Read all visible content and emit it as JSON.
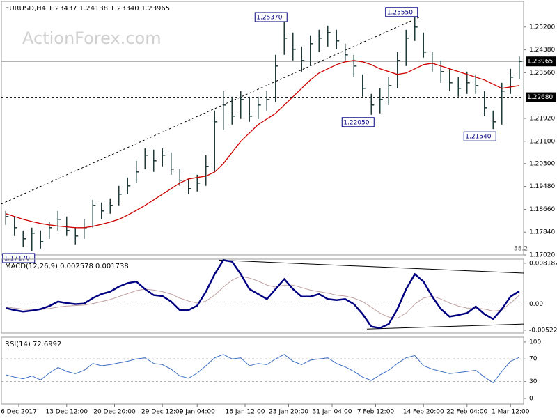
{
  "chart_data": [
    {
      "type": "ohlc",
      "title": "EURUSD,H4  1.23437 1.24138 1.23340 1.23965",
      "watermark": "ActionForex.com",
      "xlim": [
        -0.5,
        59.5
      ],
      "ylim": [
        1.1702,
        1.2612
      ],
      "yticks": [
        {
          "value": 1.252,
          "label": "1.25200"
        },
        {
          "value": 1.2438,
          "label": "1.24380"
        },
        {
          "value": 1.2356,
          "label": "1.23560"
        },
        {
          "value": 1.2192,
          "label": "1.21920"
        },
        {
          "value": 1.211,
          "label": "1.21100"
        },
        {
          "value": 1.203,
          "label": "1.20300"
        },
        {
          "value": 1.1948,
          "label": "1.19480"
        },
        {
          "value": 1.1866,
          "label": "1.18660"
        },
        {
          "value": 1.1784,
          "label": "1.17840"
        },
        {
          "value": 1.1702,
          "label": "1.17020"
        }
      ],
      "color": "#1f3a3a",
      "high": [
        1.186,
        1.184,
        1.179,
        1.18,
        1.179,
        1.182,
        1.186,
        1.184,
        1.18,
        1.183,
        1.19,
        1.189,
        1.1905,
        1.195,
        1.198,
        1.204,
        1.2085,
        1.208,
        1.2085,
        1.207,
        1.201,
        1.1975,
        1.199,
        1.206,
        1.222,
        1.229,
        1.227,
        1.229,
        1.227,
        1.227,
        1.229,
        1.242,
        1.2537,
        1.25,
        1.245,
        1.249,
        1.251,
        1.2525,
        1.251,
        1.246,
        1.242,
        1.235,
        1.228,
        1.23,
        1.234,
        1.243,
        1.251,
        1.2555,
        1.25,
        1.243,
        1.24,
        1.237,
        1.234,
        1.236,
        1.235,
        1.229,
        1.222,
        1.232,
        1.237,
        1.2414
      ],
      "low": [
        1.181,
        1.177,
        1.173,
        1.1717,
        1.1725,
        1.176,
        1.179,
        1.177,
        1.174,
        1.176,
        1.18,
        1.183,
        1.185,
        1.188,
        1.192,
        1.196,
        1.201,
        1.2,
        1.202,
        1.199,
        1.195,
        1.192,
        1.193,
        1.195,
        1.2,
        1.215,
        1.217,
        1.219,
        1.218,
        1.219,
        1.222,
        1.225,
        1.242,
        1.24,
        1.236,
        1.238,
        1.243,
        1.245,
        1.244,
        1.24,
        1.234,
        1.227,
        1.2205,
        1.221,
        1.224,
        1.23,
        1.238,
        1.247,
        1.241,
        1.236,
        1.232,
        1.229,
        1.227,
        1.228,
        1.228,
        1.22,
        1.2154,
        1.217,
        1.228,
        1.2334
      ],
      "close": [
        1.184,
        1.18,
        1.176,
        1.178,
        1.175,
        1.18,
        1.183,
        1.179,
        1.177,
        1.18,
        1.188,
        1.186,
        1.188,
        1.192,
        1.195,
        1.2,
        1.206,
        1.204,
        1.206,
        1.201,
        1.197,
        1.194,
        1.196,
        1.202,
        1.218,
        1.224,
        1.22,
        1.226,
        1.22,
        1.224,
        1.226,
        1.238,
        1.248,
        1.244,
        1.24,
        1.246,
        1.248,
        1.25,
        1.247,
        1.242,
        1.238,
        1.23,
        1.224,
        1.226,
        1.231,
        1.24,
        1.248,
        1.252,
        1.243,
        1.239,
        1.236,
        1.232,
        1.23,
        1.232,
        1.231,
        1.223,
        1.218,
        1.229,
        1.234,
        1.23965
      ],
      "series": [
        {
          "name": "MA",
          "color": "#cc0000",
          "values": [
            1.185,
            1.184,
            1.183,
            1.1822,
            1.1815,
            1.181,
            1.1806,
            1.1803,
            1.18,
            1.18,
            1.1805,
            1.1812,
            1.182,
            1.183,
            1.1845,
            1.1862,
            1.188,
            1.19,
            1.192,
            1.194,
            1.196,
            1.1975,
            1.198,
            1.1985,
            1.2,
            1.203,
            1.207,
            1.211,
            1.214,
            1.217,
            1.219,
            1.221,
            1.224,
            1.227,
            1.23,
            1.233,
            1.2355,
            1.237,
            1.2385,
            1.2395,
            1.24,
            1.2395,
            1.2385,
            1.237,
            1.236,
            1.235,
            1.2355,
            1.237,
            1.2385,
            1.239,
            1.238,
            1.237,
            1.236,
            1.235,
            1.234,
            1.233,
            1.2315,
            1.23,
            1.2305,
            1.231
          ]
        }
      ],
      "trendline": {
        "x": [
          -0.5,
          47.5
        ],
        "y": [
          1.1885,
          1.2555
        ]
      },
      "hlines": [
        {
          "value": 1.23965,
          "label": "1.23965",
          "style": "solid"
        },
        {
          "value": 1.2268,
          "label": "1.22680",
          "style": "dashed"
        }
      ],
      "annotations": [
        {
          "x": 32,
          "value": 1.2537,
          "label": "1.25370",
          "side": "top"
        },
        {
          "x": 47,
          "value": 1.2555,
          "label": "1.25550",
          "side": "top"
        },
        {
          "x": 42,
          "value": 1.2205,
          "label": "1.22050",
          "side": "bottom"
        },
        {
          "x": 56,
          "value": 1.2154,
          "label": "1.21540",
          "side": "bottom"
        },
        {
          "x": 3,
          "value": 1.1717,
          "label": "1.17170",
          "side": "bottom"
        }
      ],
      "fib_label": "38.2"
    },
    {
      "type": "line",
      "title": "MACD(12,26,9) 0.002578 0.001738",
      "ylim": [
        -0.0058,
        0.009
      ],
      "yticks": [
        0.008182,
        {
          "value": 0,
          "label": "0.00"
        },
        -0.005223
      ],
      "series": [
        {
          "name": "MACD",
          "color": "#000080",
          "values": [
            -0.0008,
            -0.0012,
            -0.0015,
            -0.0013,
            -0.001,
            -0.0004,
            0.0005,
            0.0002,
            0.0,
            0.0001,
            0.0012,
            0.002,
            0.0025,
            0.0035,
            0.0042,
            0.0045,
            0.003,
            0.0018,
            0.0016,
            0.0005,
            -0.0012,
            -0.0012,
            -0.0003,
            0.0025,
            0.006,
            0.0088,
            0.0085,
            0.006,
            0.003,
            0.002,
            0.001,
            0.003,
            0.005,
            0.003,
            0.0015,
            0.0015,
            0.002,
            0.001,
            0.0008,
            0.001,
            0.0,
            -0.002,
            -0.0045,
            -0.0048,
            -0.004,
            -0.001,
            0.003,
            0.006,
            0.0045,
            0.0015,
            -0.001,
            -0.0025,
            -0.0022,
            -0.0018,
            -0.0005,
            -0.002,
            -0.003,
            -0.001,
            0.0015,
            0.002578
          ]
        },
        {
          "name": "Signal",
          "color": "#c0a0a0",
          "values": [
            -0.0006,
            -0.0008,
            -0.001,
            -0.0011,
            -0.0011,
            -0.0009,
            -0.0006,
            -0.0004,
            -0.0003,
            -0.0002,
            0.0001,
            0.0005,
            0.0009,
            0.0015,
            0.0021,
            0.0027,
            0.003,
            0.0028,
            0.0025,
            0.002,
            0.0012,
            0.0006,
            0.0002,
            0.0006,
            0.0018,
            0.0034,
            0.0048,
            0.0056,
            0.0052,
            0.0046,
            0.0038,
            0.0034,
            0.0038,
            0.0038,
            0.0033,
            0.0028,
            0.0025,
            0.0022,
            0.0018,
            0.0016,
            0.0012,
            0.0005,
            -0.0006,
            -0.0018,
            -0.0026,
            -0.0028,
            -0.0018,
            0.0,
            0.0012,
            0.0016,
            0.001,
            0.0002,
            -0.0004,
            -0.0008,
            -0.0008,
            -0.001,
            -0.0014,
            -0.0012,
            0.0002,
            0.001738
          ]
        }
      ],
      "trendlines": [
        {
          "x": [
            24.5,
            59.5
          ],
          "y": [
            0.0088,
            0.0062
          ]
        },
        {
          "x": [
            41.5,
            59.5
          ],
          "y": [
            -0.005,
            -0.004
          ]
        }
      ]
    },
    {
      "type": "line",
      "title": "RSI(14) 72.6992",
      "ylim": [
        -9.8,
        108.5
      ],
      "yticks": [
        100,
        70,
        30,
        0
      ],
      "levels": [
        70,
        30
      ],
      "series": [
        {
          "name": "RSI",
          "color": "#3a6cc0",
          "values": [
            42,
            38,
            35,
            40,
            33,
            45,
            55,
            48,
            44,
            50,
            62,
            58,
            60,
            63,
            66,
            70,
            72,
            62,
            60,
            52,
            40,
            36,
            45,
            58,
            72,
            78,
            70,
            72,
            58,
            62,
            60,
            70,
            78,
            66,
            60,
            68,
            70,
            72,
            62,
            56,
            48,
            38,
            32,
            42,
            50,
            62,
            72,
            76,
            58,
            52,
            48,
            44,
            46,
            48,
            50,
            38,
            28,
            48,
            66,
            72.6992
          ]
        }
      ],
      "xticks": [
        {
          "value": 1.5,
          "label": "6 Dec 2017"
        },
        {
          "value": 7,
          "label": "13 Dec 12:00"
        },
        {
          "value": 12.5,
          "label": "20 Dec 20:00"
        },
        {
          "value": 18,
          "label": "29 Dec 12:00"
        },
        {
          "value": 22,
          "label": "9 Jan 04:00"
        },
        {
          "value": 27.5,
          "label": "16 Jan 12:00"
        },
        {
          "value": 32.5,
          "label": "23 Jan 20:00"
        },
        {
          "value": 37.5,
          "label": "31 Jan 04:00"
        },
        {
          "value": 42.5,
          "label": "7 Feb 12:00"
        },
        {
          "value": 48,
          "label": "14 Feb 20:00"
        },
        {
          "value": 53,
          "label": "22 Feb 04:00"
        },
        {
          "value": 58,
          "label": "1 Mar 12:00"
        }
      ]
    }
  ]
}
